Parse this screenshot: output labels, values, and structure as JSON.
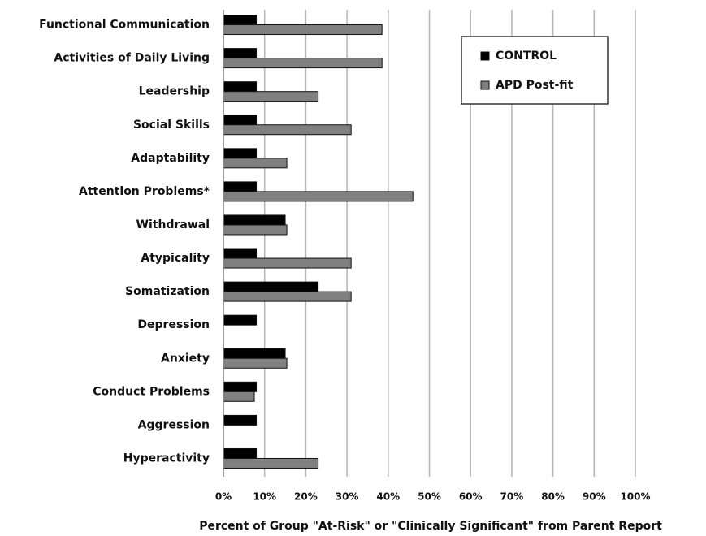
{
  "chart_data": {
    "type": "bar",
    "orientation": "horizontal",
    "x_label": "Percent of Group \"At-Risk\" or \"Clinically Significant\" from Parent Report",
    "categories": [
      "Functional Communication",
      "Activities of Daily Living",
      "Leadership",
      "Social Skills",
      "Adaptability",
      "Attention Problems*",
      "Withdrawal",
      "Atypicality",
      "Somatization",
      "Depression",
      "Anxiety",
      "Conduct Problems",
      "Aggression",
      "Hyperactivity"
    ],
    "series": [
      {
        "name": "CONTROL",
        "color": "#000000",
        "values": [
          8,
          8,
          8,
          8,
          8,
          8,
          15,
          8,
          23,
          8,
          15,
          8,
          8,
          8
        ]
      },
      {
        "name": "APD Post-fit",
        "color": "#808080",
        "values": [
          38.5,
          38.5,
          23,
          31,
          15.4,
          46,
          15.4,
          31,
          31,
          0,
          15.4,
          7.5,
          0,
          23
        ]
      }
    ],
    "xlim": [
      0,
      100
    ],
    "xticks": [
      {
        "value": 0,
        "label": "0%"
      },
      {
        "value": 10,
        "label": "10%"
      },
      {
        "value": 20,
        "label": "20%"
      },
      {
        "value": 30,
        "label": "30%"
      },
      {
        "value": 40,
        "label": "40%"
      },
      {
        "value": 50,
        "label": "50%"
      },
      {
        "value": 60,
        "label": "60%"
      },
      {
        "value": 70,
        "label": "70%"
      },
      {
        "value": 80,
        "label": "80%"
      },
      {
        "value": 90,
        "label": "90%"
      },
      {
        "value": 100,
        "label": "100%"
      }
    ],
    "grid": true,
    "legend": "upper right"
  }
}
